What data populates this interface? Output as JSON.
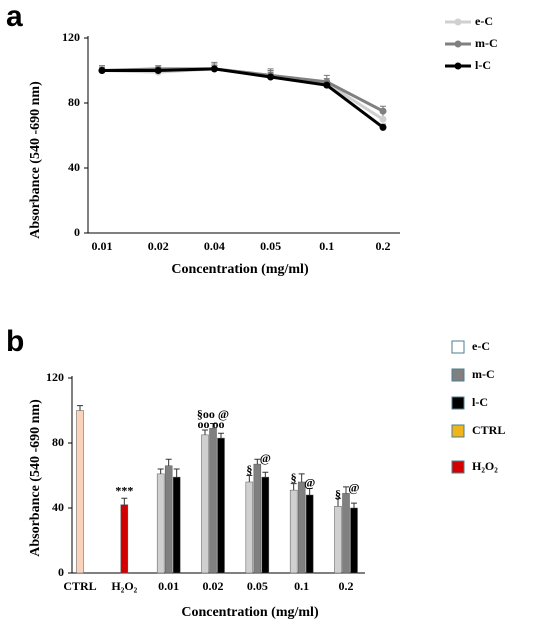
{
  "chart_data": [
    {
      "type": "line",
      "panel": "a",
      "ylabel": "Absorbance (540 -690 nm)",
      "xlabel": "Concentration  (mg/ml)",
      "categories": [
        "0.01",
        "0.02",
        "0.04",
        "0.05",
        "0.1",
        "0.2"
      ],
      "ylim": [
        0,
        120
      ],
      "yticks": [
        0,
        40,
        80,
        120
      ],
      "series": [
        {
          "name": "e-C",
          "color": "#d0d0d0",
          "values": [
            100,
            99,
            101,
            97,
            92,
            70
          ],
          "errors": [
            2,
            2,
            3,
            3,
            3,
            5
          ]
        },
        {
          "name": "m-C",
          "color": "#808080",
          "values": [
            100,
            101,
            101,
            97,
            93,
            75
          ],
          "errors": [
            3,
            2,
            4,
            4,
            4,
            3
          ]
        },
        {
          "name": "l-C",
          "color": "#000000",
          "values": [
            100,
            100,
            101,
            96,
            91,
            65
          ],
          "errors": [
            2,
            2,
            2,
            3,
            2,
            2
          ]
        }
      ]
    },
    {
      "type": "bar",
      "panel": "b",
      "ylabel": "Absorbance (540 -690 nm)",
      "xlabel": "Concentration  (mg/ml)",
      "categories": [
        "CTRL",
        "H₂O₂",
        "0.01",
        "0.02",
        "0.05",
        "0.1",
        "0.2"
      ],
      "ylim": [
        0,
        120
      ],
      "yticks": [
        0,
        40,
        80,
        120
      ],
      "series": [
        {
          "name": "e-C",
          "color": "#d0d0d0",
          "legend_color": "#ffffff",
          "values": [
            null,
            null,
            61,
            85,
            56,
            51,
            41
          ],
          "errors": [
            null,
            null,
            3,
            3,
            4,
            4,
            5
          ]
        },
        {
          "name": "m-C",
          "color": "#808080",
          "values": [
            null,
            null,
            66,
            89,
            67,
            56,
            49
          ],
          "errors": [
            null,
            null,
            4,
            3,
            3,
            5,
            4
          ]
        },
        {
          "name": "l-C",
          "color": "#000000",
          "values": [
            null,
            null,
            59,
            83,
            59,
            48,
            40
          ],
          "errors": [
            null,
            null,
            5,
            3,
            3,
            4,
            3
          ]
        },
        {
          "name": "CTRL",
          "color": "#fbd3bb",
          "legend_color": "#f0b41c",
          "values": [
            100,
            null,
            null,
            null,
            null,
            null,
            null
          ],
          "errors": [
            3,
            null,
            null,
            null,
            null,
            null,
            null
          ]
        },
        {
          "name": "H₂O₂",
          "color": "#d40000",
          "values": [
            null,
            42,
            null,
            null,
            null,
            null,
            null
          ],
          "errors": [
            null,
            4,
            null,
            null,
            null,
            null,
            null
          ]
        }
      ],
      "annotations": [
        "***",
        "§oo @",
        "oo  oo",
        "§",
        "@",
        "§",
        "@",
        "§",
        "@"
      ]
    }
  ]
}
